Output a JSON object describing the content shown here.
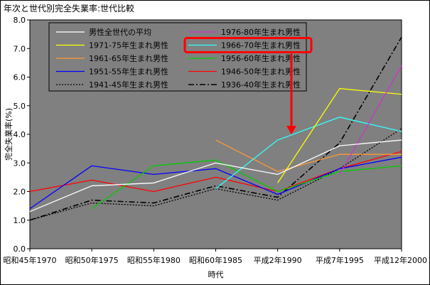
{
  "chart_data": {
    "type": "line",
    "title": "年次と世代別完全失業率:世代比較",
    "xlabel": "時代",
    "ylabel": "完全失業率(%)",
    "categories": [
      "昭和45年1970",
      "昭和50年1975",
      "昭和55年1980",
      "昭和60年1985",
      "平成2年1990",
      "平成7年1995",
      "平成12年2000"
    ],
    "ylim": [
      0,
      8
    ],
    "yticks": [
      "0.0",
      "1.0",
      "2.0",
      "3.0",
      "4.0",
      "5.0",
      "6.0",
      "7.0",
      "8.0"
    ],
    "plot_background": "#808080",
    "grid": false,
    "legend_position": "top-left",
    "highlight_series": "1966-70年生まれ男性",
    "highlight_color": "#ff0000",
    "series": [
      {
        "name": "男性全世代の平均",
        "color": "#ffffff",
        "dash": "solid",
        "values": [
          1.3,
          2.2,
          2.3,
          3.0,
          2.6,
          3.6,
          3.8
        ]
      },
      {
        "name": "1976-80年生まれ男性",
        "color": "#cc33cc",
        "dash": "solid",
        "values": [
          null,
          null,
          null,
          null,
          null,
          2.6,
          6.4
        ]
      },
      {
        "name": "1971-75年生まれ男性",
        "color": "#ffff00",
        "dash": "solid",
        "values": [
          null,
          null,
          null,
          null,
          2.3,
          5.6,
          5.4
        ]
      },
      {
        "name": "1966-70年生まれ男性",
        "color": "#33ffff",
        "dash": "solid",
        "values": [
          null,
          null,
          null,
          2.1,
          3.8,
          4.6,
          4.1
        ]
      },
      {
        "name": "1961-65年生まれ男性",
        "color": "#ff9933",
        "dash": "solid",
        "values": [
          null,
          null,
          null,
          3.8,
          2.7,
          3.3,
          3.3
        ]
      },
      {
        "name": "1956-60年生まれ男性",
        "color": "#00cc00",
        "dash": "solid",
        "values": [
          null,
          1.4,
          2.9,
          3.1,
          2.0,
          2.7,
          2.9
        ]
      },
      {
        "name": "1951-55年生まれ男性",
        "color": "#0000ff",
        "dash": "solid",
        "values": [
          1.4,
          2.9,
          2.6,
          2.8,
          1.9,
          2.8,
          3.2
        ]
      },
      {
        "name": "1946-50年生まれ男性",
        "color": "#ff0000",
        "dash": "solid",
        "values": [
          2.0,
          2.4,
          2.0,
          2.5,
          2.0,
          2.8,
          3.4
        ]
      },
      {
        "name": "1941-45年生まれ男性",
        "color": "#000000",
        "dash": "dotted",
        "values": [
          1.0,
          1.6,
          1.5,
          2.1,
          1.7,
          2.8,
          4.2
        ]
      },
      {
        "name": "1936-40年生まれ男性",
        "color": "#000000",
        "dash": "dashdot",
        "values": [
          1.0,
          1.7,
          1.6,
          2.2,
          1.8,
          3.7,
          7.4
        ]
      }
    ]
  }
}
